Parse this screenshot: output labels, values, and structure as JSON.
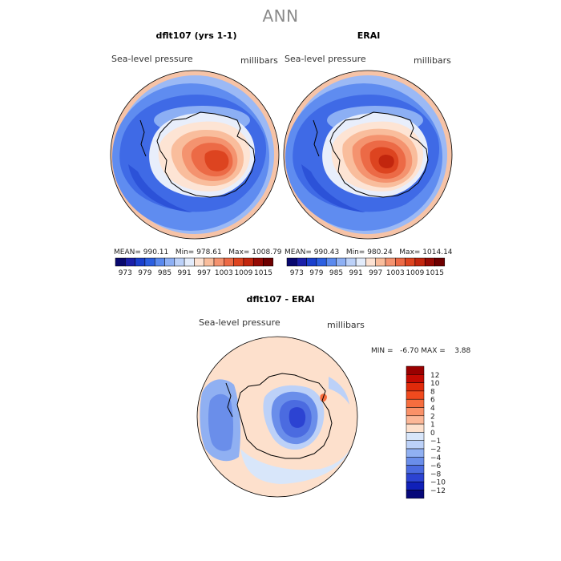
{
  "main_title": "ANN",
  "panels": [
    {
      "title": "dflt107 (yrs 1-1)",
      "variable": "Sea-level pressure",
      "units": "millibars",
      "mean_label": "MEAN= 990.11",
      "min_label": "Min= 978.61",
      "max_label": "Max= 1008.79"
    },
    {
      "title": "ERAI",
      "variable": "Sea-level pressure",
      "units": "millibars",
      "mean_label": "MEAN= 990.43",
      "min_label": "Min= 980.24",
      "max_label": "Max= 1014.14"
    }
  ],
  "colorbar_ticks": [
    "973",
    "979",
    "985",
    "991",
    "997",
    "1003",
    "1009",
    "1015"
  ],
  "colorbar_colors": [
    "#08086e",
    "#1a1fa8",
    "#1a3fcc",
    "#2c5fe0",
    "#5b8aee",
    "#8eb0f4",
    "#bcd1f8",
    "#e3ecfb",
    "#fde2d2",
    "#f9bd9c",
    "#f49370",
    "#ec6a46",
    "#dd4420",
    "#c2260e",
    "#950a04",
    "#6e0000"
  ],
  "diff_panel": {
    "title": "dflt107 - ERAI",
    "variable": "Sea-level pressure",
    "units": "millibars",
    "min_max_label": "MIN =   -6.70 MAX =    3.88",
    "legend_levels": [
      "12",
      "10",
      "8",
      "6",
      "4",
      "2",
      "1",
      "0",
      "−1",
      "−2",
      "−4",
      "−6",
      "−8",
      "−10",
      "−12"
    ],
    "legend_colors": [
      "#9a0000",
      "#c40a02",
      "#e02a0a",
      "#f04a1e",
      "#f66d3e",
      "#fa9168",
      "#fcb797",
      "#fde0cc",
      "#d8e6fa",
      "#bcd1f8",
      "#90b0f2",
      "#6a8eea",
      "#4b6be0",
      "#2c43d2",
      "#1020b8",
      "#06087a"
    ]
  }
}
